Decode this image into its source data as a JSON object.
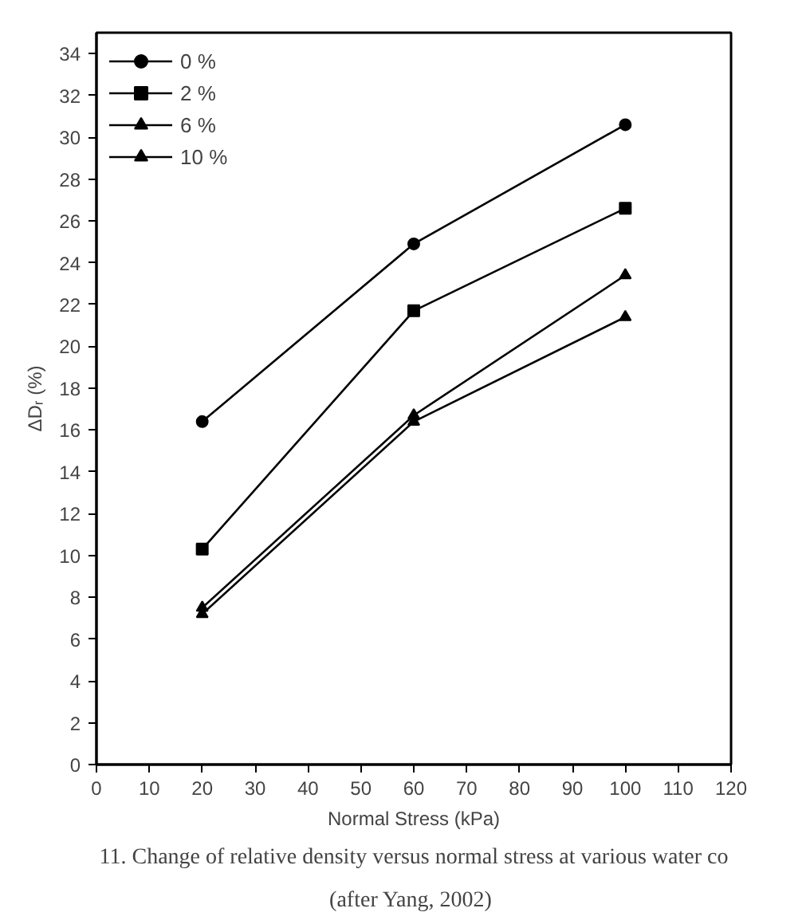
{
  "chart_data": {
    "type": "line",
    "xlabel": "Normal Stress (kPa)",
    "ylabel": "ΔDᵣ (%)",
    "x": [
      20,
      60,
      100
    ],
    "series": [
      {
        "name": "0 %",
        "color": "#000000",
        "marker": "circle",
        "values": [
          16.4,
          24.9,
          30.6
        ]
      },
      {
        "name": "2 %",
        "color": "#000000",
        "marker": "square",
        "values": [
          10.3,
          21.7,
          26.6
        ]
      },
      {
        "name": "6 %",
        "color": "#000000",
        "marker": "triangle",
        "values": [
          7.5,
          16.7,
          23.4
        ]
      },
      {
        "name": "10 %",
        "color": "#000000",
        "marker": "triangle",
        "values": [
          7.2,
          16.4,
          21.4
        ]
      }
    ],
    "xlim": [
      0,
      120
    ],
    "xticks": [
      0,
      10,
      20,
      30,
      40,
      50,
      60,
      70,
      80,
      90,
      100,
      110,
      120
    ],
    "ylim": [
      0,
      35
    ],
    "yticks": [
      0,
      2,
      4,
      6,
      8,
      10,
      12,
      14,
      16,
      18,
      20,
      22,
      24,
      26,
      28,
      30,
      32,
      34
    ],
    "grid": false,
    "legend": "top left",
    "line_style": "solid",
    "annotations": [
      "11. Change of relative density versus normal stress at various water co",
      "(after  Yang, 2002)"
    ]
  }
}
